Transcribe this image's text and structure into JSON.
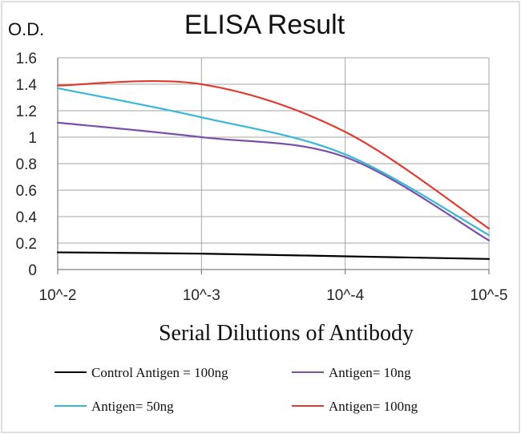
{
  "chart_data": {
    "type": "line",
    "title": "ELISA Result",
    "ylabel": "O.D.",
    "xlabel": "Serial Dilutions of Antibody",
    "categories": [
      "10^-2",
      "10^-3",
      "10^-4",
      "10^-5"
    ],
    "ylim": [
      0,
      1.6
    ],
    "yticks": [
      0,
      0.2,
      0.4,
      0.6,
      0.8,
      1,
      1.2,
      1.4,
      1.6
    ],
    "grid": true,
    "legend_position": "bottom",
    "series": [
      {
        "name": "Control Antigen = 100ng",
        "color": "#000000",
        "x": [
          0,
          1,
          2,
          3
        ],
        "values": [
          0.13,
          0.12,
          0.1,
          0.08
        ]
      },
      {
        "name": "Antigen= 10ng",
        "color": "#7b4fa8",
        "x": [
          0,
          1,
          2,
          3
        ],
        "values": [
          1.11,
          1.0,
          0.85,
          0.22
        ]
      },
      {
        "name": "Antigen= 50ng",
        "color": "#38b7d6",
        "x": [
          0,
          1,
          2,
          3
        ],
        "values": [
          1.37,
          1.15,
          0.87,
          0.26
        ]
      },
      {
        "name": "Antigen= 100ng",
        "color": "#e03b31",
        "x": [
          0,
          1,
          2,
          3
        ],
        "values": [
          1.39,
          1.4,
          1.04,
          0.31
        ]
      }
    ]
  }
}
